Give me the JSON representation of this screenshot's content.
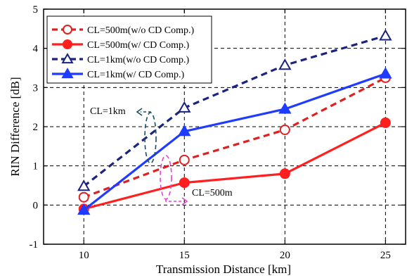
{
  "chart_data": {
    "type": "line",
    "xlabel": "Transmission Distance [km]",
    "ylabel": "RIN Difference [dB]",
    "xlim": [
      8,
      26
    ],
    "ylim": [
      -1,
      5
    ],
    "xticks": [
      10,
      15,
      20,
      25
    ],
    "yticks": [
      -1,
      0,
      1,
      2,
      3,
      4,
      5
    ],
    "grid": true,
    "legend_position": "top-left",
    "x": [
      10,
      15,
      20,
      25
    ],
    "series": [
      {
        "name": "CL=500m(w/o CD Comp.)",
        "values": [
          0.2,
          1.15,
          1.92,
          3.25
        ],
        "color": "#e02020",
        "dash": true,
        "marker": "circle",
        "filled": false
      },
      {
        "name": "CL=500m(w/ CD Comp.)",
        "values": [
          -0.1,
          0.57,
          0.8,
          2.1
        ],
        "color": "#ff1f1f",
        "dash": false,
        "marker": "circle",
        "filled": true
      },
      {
        "name": "CL=1km(w/o CD Comp.)",
        "values": [
          0.48,
          2.48,
          3.57,
          4.32
        ],
        "color": "#1a237e",
        "dash": true,
        "marker": "triangle",
        "filled": false
      },
      {
        "name": "CL=1km(w/ CD Comp.)",
        "values": [
          -0.13,
          1.88,
          2.45,
          3.35
        ],
        "color": "#1f3bff",
        "dash": false,
        "marker": "triangle",
        "filled": true
      }
    ],
    "annotations": [
      {
        "text": "CL=1km",
        "color": "#1a4e5e"
      },
      {
        "text": "CL=500m",
        "color": "#e83fd1"
      }
    ]
  }
}
